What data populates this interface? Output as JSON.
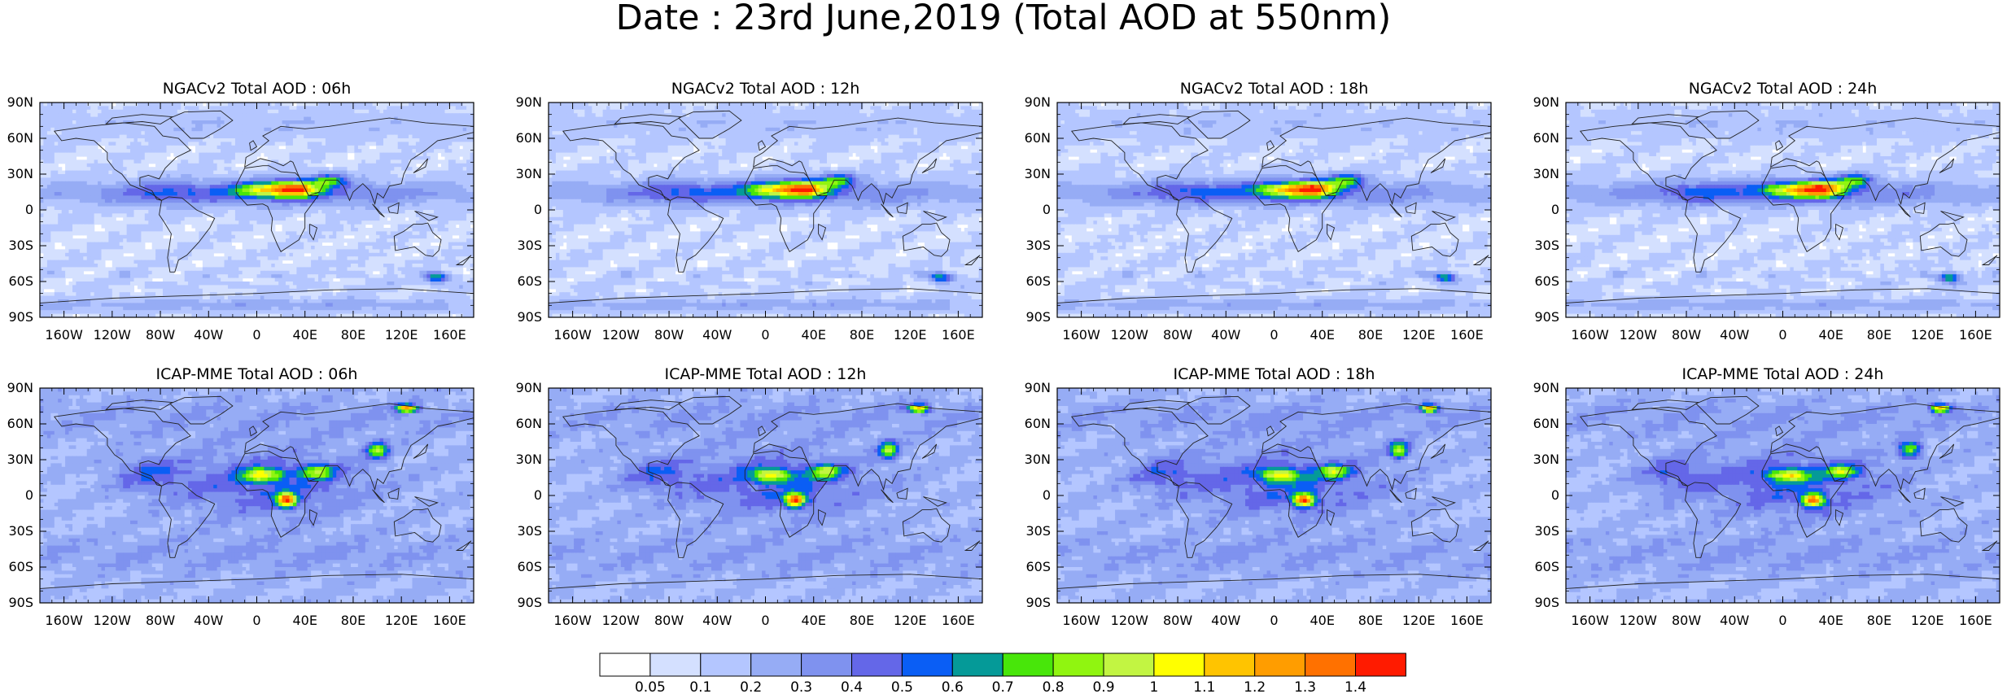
{
  "figure": {
    "title": "Date : 23rd June,2019 (Total AOD at 550nm)"
  },
  "chart_data": {
    "type": "heatmap",
    "title": "Date : 23rd June,2019 (Total AOD at 550nm)",
    "variable": "Total AOD at 550nm",
    "x_ticks": [
      "160W",
      "120W",
      "80W",
      "40W",
      "0",
      "40E",
      "80E",
      "120E",
      "160E"
    ],
    "x_tick_values": [
      -160,
      -120,
      -80,
      -40,
      0,
      40,
      80,
      120,
      160
    ],
    "y_ticks": [
      "90N",
      "60N",
      "30N",
      "0",
      "30S",
      "60S",
      "90S"
    ],
    "y_tick_values": [
      90,
      60,
      30,
      0,
      -30,
      -60,
      -90
    ],
    "xlim": [
      -180,
      180
    ],
    "ylim": [
      -90,
      90
    ],
    "panels": [
      {
        "title": "NGACv2 Total AOD : 06h",
        "model": "NGACv2",
        "hour": "06h"
      },
      {
        "title": "NGACv2 Total AOD : 12h",
        "model": "NGACv2",
        "hour": "12h"
      },
      {
        "title": "NGACv2 Total AOD : 18h",
        "model": "NGACv2",
        "hour": "18h"
      },
      {
        "title": "NGACv2 Total AOD : 24h",
        "model": "NGACv2",
        "hour": "24h"
      },
      {
        "title": "ICAP-MME Total AOD : 06h",
        "model": "ICAP-MME",
        "hour": "06h"
      },
      {
        "title": "ICAP-MME Total AOD : 12h",
        "model": "ICAP-MME",
        "hour": "12h"
      },
      {
        "title": "ICAP-MME Total AOD : 18h",
        "model": "ICAP-MME",
        "hour": "18h"
      },
      {
        "title": "ICAP-MME Total AOD : 24h",
        "model": "ICAP-MME",
        "hour": "24h"
      }
    ],
    "colorbar": {
      "labels": [
        "0.05",
        "0.1",
        "0.2",
        "0.3",
        "0.4",
        "0.5",
        "0.6",
        "0.7",
        "0.8",
        "0.9",
        "1",
        "1.1",
        "1.2",
        "1.3",
        "1.4"
      ],
      "thresholds": [
        0.05,
        0.1,
        0.2,
        0.3,
        0.4,
        0.5,
        0.6,
        0.7,
        0.8,
        0.9,
        1,
        1.1,
        1.2,
        1.3,
        1.4
      ],
      "colors": [
        "#ffffff",
        "#d4e0ff",
        "#b4c6ff",
        "#96acf5",
        "#7f92ef",
        "#6467e8",
        "#0a5ef5",
        "#059a98",
        "#48e60a",
        "#90f510",
        "#c2f542",
        "#ffff00",
        "#ffc400",
        "#ff9d00",
        "#ff7100",
        "#ff1b00"
      ]
    },
    "legend": "bottom-center"
  }
}
